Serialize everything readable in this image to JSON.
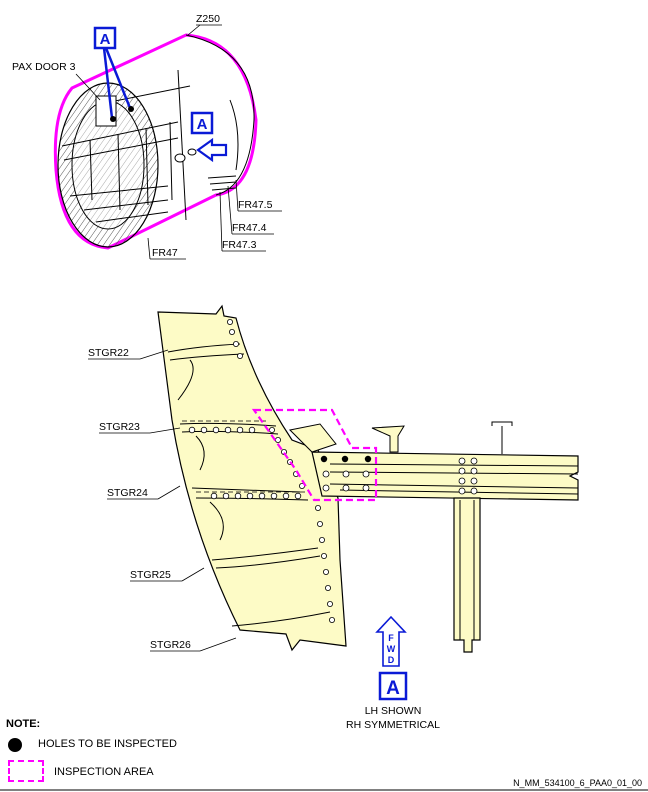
{
  "labels": {
    "zone": "Z250",
    "pax_door": "PAX DOOR 3",
    "fr47_5": "FR47.5",
    "fr47_4": "FR47.4",
    "fr47_3": "FR47.3",
    "fr47": "FR47",
    "stgr22": "STGR22",
    "stgr23": "STGR23",
    "stgr24": "STGR24",
    "stgr25": "STGR25",
    "stgr26": "STGR26"
  },
  "views": {
    "callout_top": "A",
    "callout_mid": "A",
    "view_letter": "A"
  },
  "fwd": {
    "f": "F",
    "w": "W",
    "d": "D"
  },
  "caption": {
    "line1": "LH SHOWN",
    "line2": "RH SYMMETRICAL"
  },
  "note": {
    "title": "NOTE:",
    "holes": "HOLES TO BE INSPECTED",
    "area": "INSPECTION AREA"
  },
  "doc_id": "N_MM_534100_6_PAA0_01_00",
  "colors": {
    "structure": "#fdfbc6",
    "inspection": "#ff00ff",
    "callout": "#0a1ad6"
  }
}
